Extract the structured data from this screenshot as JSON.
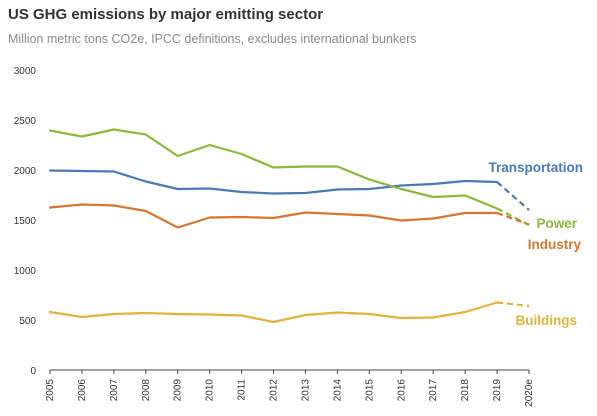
{
  "chart_data": {
    "type": "line",
    "title": "US GHG emissions by major emitting sector",
    "subtitle": "Million metric tons CO2e, IPCC definitions, excludes international bunkers",
    "xlabel": "",
    "ylabel": "",
    "x": [
      "2005",
      "2006",
      "2007",
      "2008",
      "2009",
      "2010",
      "2011",
      "2012",
      "2013",
      "2014",
      "2015",
      "2016",
      "2017",
      "2018",
      "2019",
      "2020e"
    ],
    "ylim": [
      0,
      3000
    ],
    "yticks": [
      "0",
      "500",
      "1000",
      "1500",
      "2000",
      "2500",
      "3000"
    ],
    "grid": false,
    "legend": "direct labels at line ends",
    "projection_style": "dashed segment from 2019 to 2020e",
    "series": [
      {
        "name": "Transportation",
        "color": "#4a7ab5",
        "values": [
          1995,
          1990,
          1985,
          1885,
          1810,
          1815,
          1780,
          1765,
          1770,
          1805,
          1810,
          1845,
          1860,
          1890,
          1880,
          1600
        ]
      },
      {
        "name": "Power",
        "color": "#8cb83c",
        "values": [
          2395,
          2335,
          2405,
          2355,
          2140,
          2250,
          2160,
          2025,
          2035,
          2035,
          1905,
          1810,
          1730,
          1745,
          1615,
          1450
        ]
      },
      {
        "name": "Industry",
        "color": "#d67630",
        "values": [
          1625,
          1655,
          1645,
          1590,
          1425,
          1525,
          1530,
          1520,
          1575,
          1560,
          1545,
          1495,
          1515,
          1570,
          1570,
          1455
        ]
      },
      {
        "name": "Buildings",
        "color": "#e2b33c",
        "values": [
          580,
          530,
          560,
          570,
          560,
          555,
          545,
          480,
          550,
          575,
          560,
          520,
          525,
          580,
          675,
          640
        ]
      }
    ]
  }
}
